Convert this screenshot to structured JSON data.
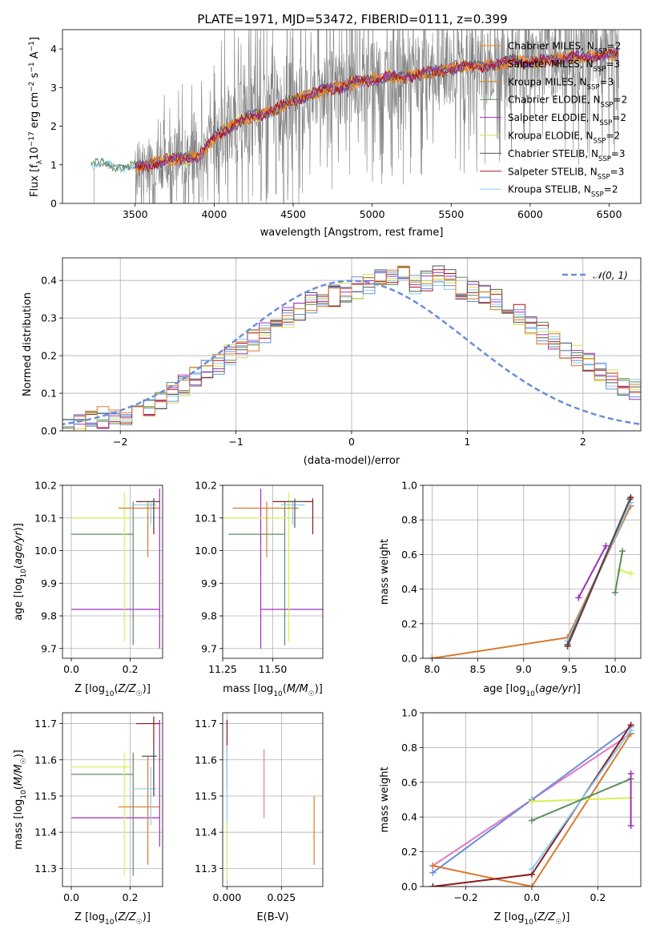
{
  "figure_title": "PLATE=1971, MJD=53472, FIBERID=0111, z=0.399",
  "colors": {
    "chabrier_miles": "#ff7f0e",
    "salpeter_miles": "#9467bd",
    "kroupa_miles": "#e08010",
    "chabrier_elodie": "#5e8c5e",
    "salpeter_elodie": "#a030c0",
    "kroupa_elodie": "#d8e050",
    "chabrier_stelib": "#555555",
    "salpeter_stelib": "#b01010",
    "kroupa_stelib": "#88ccee",
    "data": "#808080",
    "gauss": "#6a8fd8",
    "pink": "#e377c2",
    "blue": "#6a8fd8",
    "orange": "#d87a30",
    "darkred": "#8b1a1a",
    "green": "#5e8c5e",
    "yellow": "#d8f050",
    "cyan": "#88ccee",
    "purple": "#a030c0"
  },
  "chart_data": [
    {
      "type": "line",
      "title": "PLATE=1971, MJD=53472, FIBERID=0111, z=0.399",
      "xlabel": "wavelength [Angstrom, rest frame]",
      "ylabel": "Flux [f_λ 10^-17 erg cm^-2 s^-1 A^-1]",
      "xlim": [
        3040,
        6700
      ],
      "ylim": [
        0,
        4.5
      ],
      "xticks": [
        3500,
        4000,
        4500,
        5000,
        5500,
        6000,
        6500
      ],
      "yticks": [
        0,
        1,
        2,
        3,
        4
      ],
      "legend": [
        {
          "label": "Chabrier MILES, N",
          "sub": "SSP",
          "suffix": "=2",
          "color_key": "chabrier_miles"
        },
        {
          "label": "Salpeter MILES, N",
          "sub": "SSP",
          "suffix": "=3",
          "color_key": "salpeter_miles"
        },
        {
          "label": "Kroupa MILES, N",
          "sub": "SSP",
          "suffix": "=3",
          "color_key": "kroupa_miles"
        },
        {
          "label": "Chabrier ELODIE, N",
          "sub": "SSP",
          "suffix": "=2",
          "color_key": "chabrier_elodie"
        },
        {
          "label": "Salpeter ELODIE, N",
          "sub": "SSP",
          "suffix": "=2",
          "color_key": "salpeter_elodie"
        },
        {
          "label": "Kroupa ELODIE, N",
          "sub": "SSP",
          "suffix": "=2",
          "color_key": "kroupa_elodie"
        },
        {
          "label": "Chabrier STELIB, N",
          "sub": "SSP",
          "suffix": "=3",
          "color_key": "chabrier_stelib"
        },
        {
          "label": "Salpeter STELIB, N",
          "sub": "SSP",
          "suffix": "=3",
          "color_key": "salpeter_stelib"
        },
        {
          "label": "Kroupa STELIB, N",
          "sub": "SSP",
          "suffix": "=2",
          "color_key": "kroupa_stelib"
        }
      ],
      "model_curve": {
        "x": [
          3220,
          3300,
          3400,
          3500,
          3600,
          3700,
          3800,
          3900,
          4000,
          4100,
          4200,
          4300,
          4400,
          4500,
          4600,
          4700,
          4800,
          4900,
          5000,
          5100,
          5200,
          5300,
          5400,
          5500,
          5600,
          5700,
          5800,
          5900,
          6000,
          6100,
          6200,
          6300,
          6400,
          6500
        ],
        "y": [
          1.0,
          1.0,
          0.98,
          0.92,
          1.02,
          1.12,
          1.15,
          1.2,
          1.7,
          2.0,
          2.2,
          2.3,
          2.45,
          2.7,
          2.8,
          2.95,
          3.0,
          3.15,
          3.2,
          3.3,
          3.25,
          3.35,
          3.4,
          3.5,
          3.55,
          3.55,
          3.6,
          3.7,
          3.65,
          3.7,
          3.75,
          3.8,
          3.8,
          3.85
        ]
      },
      "data_range": {
        "x": [
          3220,
          6560
        ]
      }
    },
    {
      "type": "histogram",
      "xlabel": "(data-model)/error",
      "ylabel": "Normed distribution",
      "xlim": [
        -2.5,
        2.5
      ],
      "ylim": [
        0,
        0.46
      ],
      "xticks": [
        -2,
        -1,
        0,
        1,
        2
      ],
      "yticks": [
        0.0,
        0.1,
        0.2,
        0.3,
        0.4
      ],
      "legend": "𝒩(0, 1)",
      "bin_width": 0.1,
      "bin_start": -2.5,
      "envelope": [
        0.01,
        0.02,
        0.03,
        0.035,
        0.04,
        0.045,
        0.05,
        0.06,
        0.08,
        0.1,
        0.12,
        0.14,
        0.16,
        0.18,
        0.2,
        0.22,
        0.24,
        0.26,
        0.28,
        0.3,
        0.32,
        0.34,
        0.36,
        0.36,
        0.37,
        0.38,
        0.39,
        0.4,
        0.4,
        0.41,
        0.39,
        0.4,
        0.41,
        0.4,
        0.38,
        0.37,
        0.36,
        0.35,
        0.33,
        0.31,
        0.28,
        0.26,
        0.24,
        0.22,
        0.2,
        0.18,
        0.16,
        0.14,
        0.12,
        0.11
      ]
    },
    {
      "type": "scatter",
      "xlabel": "Z [log10(Z/Z☉)]",
      "ylabel": "age [log10(age/yr)]",
      "xlim": [
        -0.03,
        0.31
      ],
      "ylim": [
        9.67,
        10.2
      ],
      "xticks": [
        0.0,
        0.2
      ],
      "yticks": [
        9.7,
        9.8,
        9.9,
        10.0,
        10.1,
        10.2
      ],
      "points": [
        {
          "x": 0.3,
          "y": 9.82,
          "xerr": [
            0.3,
            0.0
          ],
          "yerr": [
            0.12,
            0.37
          ],
          "color_key": "purple"
        },
        {
          "x": 0.21,
          "y": 10.05,
          "xerr": [
            0.21,
            0.0
          ],
          "yerr": [
            0.34,
            0.1
          ],
          "color_key": "green"
        },
        {
          "x": 0.18,
          "y": 10.1,
          "xerr": [
            0.18,
            0.02
          ],
          "yerr": [
            0.38,
            0.08
          ],
          "color_key": "yellow"
        },
        {
          "x": 0.26,
          "y": 10.13,
          "xerr": [
            0.1,
            0.04
          ],
          "yerr": [
            0.15,
            0.02
          ],
          "color_key": "orange"
        },
        {
          "x": 0.28,
          "y": 10.15,
          "xerr": [
            0.06,
            0.02
          ],
          "yerr": [
            0.1,
            0.01
          ],
          "color_key": "darkred"
        },
        {
          "x": 0.27,
          "y": 10.14,
          "xerr": [
            0.06,
            0.02
          ],
          "yerr": [
            0.06,
            0.01
          ],
          "color_key": "cyan"
        },
        {
          "x": 0.28,
          "y": 10.15,
          "xerr": [
            0.04,
            0.01
          ],
          "yerr": [
            0.08,
            0.01
          ],
          "color_key": "chabrier_stelib"
        }
      ]
    },
    {
      "type": "scatter",
      "xlabel": "mass [log10(M/M☉)]",
      "ylabel": "",
      "xlim": [
        11.25,
        11.75
      ],
      "ylim": [
        9.67,
        10.2
      ],
      "xticks": [
        11.25,
        11.5
      ],
      "yticks": [
        9.7,
        9.8,
        9.9,
        10.0,
        10.1,
        10.2
      ],
      "points": [
        {
          "x": 11.44,
          "y": 9.82,
          "xerr": [
            0.0,
            0.36
          ],
          "yerr": [
            0.12,
            0.37
          ],
          "color_key": "purple"
        },
        {
          "x": 11.56,
          "y": 10.05,
          "xerr": [
            0.28,
            0.0
          ],
          "yerr": [
            0.34,
            0.1
          ],
          "color_key": "green"
        },
        {
          "x": 11.58,
          "y": 10.1,
          "xerr": [
            0.34,
            0.0
          ],
          "yerr": [
            0.38,
            0.08
          ],
          "color_key": "yellow"
        },
        {
          "x": 11.47,
          "y": 10.13,
          "xerr": [
            0.17,
            0.16
          ],
          "yerr": [
            0.15,
            0.02
          ],
          "color_key": "orange"
        },
        {
          "x": 11.7,
          "y": 10.15,
          "xerr": [
            0.2,
            0.0
          ],
          "yerr": [
            0.1,
            0.01
          ],
          "color_key": "darkred"
        },
        {
          "x": 11.6,
          "y": 10.14,
          "xerr": [
            0.06,
            0.06
          ],
          "yerr": [
            0.06,
            0.01
          ],
          "color_key": "cyan"
        },
        {
          "x": 11.61,
          "y": 10.15,
          "xerr": [
            0.04,
            0.04
          ],
          "yerr": [
            0.08,
            0.01
          ],
          "color_key": "chabrier_stelib"
        }
      ]
    },
    {
      "type": "line",
      "xlabel": "age [log10(age/yr)]",
      "ylabel": "mass weight",
      "xlim": [
        7.9,
        10.28
      ],
      "ylim": [
        0,
        1.0
      ],
      "xticks": [
        8.0,
        8.5,
        9.0,
        9.5,
        10.0
      ],
      "yticks": [
        0.0,
        0.2,
        0.4,
        0.6,
        0.8,
        1.0
      ],
      "series": [
        {
          "color_key": "orange",
          "x": [
            8.0,
            9.48,
            10.17
          ],
          "y": [
            0.0,
            0.12,
            0.88
          ]
        },
        {
          "color_key": "cyan",
          "x": [
            9.48,
            10.17
          ],
          "y": [
            0.1,
            0.9
          ]
        },
        {
          "color_key": "darkred",
          "x": [
            9.48,
            10.17
          ],
          "y": [
            0.07,
            0.93
          ]
        },
        {
          "color_key": "chabrier_stelib",
          "x": [
            9.48,
            10.16
          ],
          "y": [
            0.08,
            0.92
          ]
        },
        {
          "color_key": "purple",
          "x": [
            9.6,
            9.9
          ],
          "y": [
            0.35,
            0.65
          ]
        },
        {
          "color_key": "yellow",
          "x": [
            10.05,
            10.17
          ],
          "y": [
            0.51,
            0.49
          ]
        },
        {
          "color_key": "green",
          "x": [
            10.0,
            10.08
          ],
          "y": [
            0.38,
            0.62
          ]
        }
      ]
    },
    {
      "type": "scatter",
      "xlabel": "Z [log10(Z/Z☉)]",
      "ylabel": "mass [log10(M/M☉)]",
      "xlim": [
        -0.03,
        0.31
      ],
      "ylim": [
        11.25,
        11.73
      ],
      "xticks": [
        0.0,
        0.2
      ],
      "yticks": [
        11.3,
        11.4,
        11.5,
        11.6,
        11.7
      ],
      "points": [
        {
          "x": 0.3,
          "y": 11.44,
          "xerr": [
            0.3,
            0.0
          ],
          "yerr": [
            0.08,
            0.27
          ],
          "color_key": "purple"
        },
        {
          "x": 0.21,
          "y": 11.56,
          "xerr": [
            0.21,
            0.0
          ],
          "yerr": [
            0.28,
            0.06
          ],
          "color_key": "green"
        },
        {
          "x": 0.18,
          "y": 11.58,
          "xerr": [
            0.18,
            0.02
          ],
          "yerr": [
            0.3,
            0.04
          ],
          "color_key": "yellow"
        },
        {
          "x": 0.26,
          "y": 11.47,
          "xerr": [
            0.1,
            0.04
          ],
          "yerr": [
            0.16,
            0.14
          ],
          "color_key": "orange"
        },
        {
          "x": 0.28,
          "y": 11.7,
          "xerr": [
            0.06,
            0.02
          ],
          "yerr": [
            0.2,
            0.02
          ],
          "color_key": "darkred"
        },
        {
          "x": 0.27,
          "y": 11.52,
          "xerr": [
            0.06,
            0.02
          ],
          "yerr": [
            0.1,
            0.06
          ],
          "color_key": "cyan"
        },
        {
          "x": 0.28,
          "y": 11.61,
          "xerr": [
            0.04,
            0.01
          ],
          "yerr": [
            0.1,
            0.04
          ],
          "color_key": "chabrier_stelib"
        }
      ]
    },
    {
      "type": "scatter",
      "xlabel": "E(B-V)",
      "ylabel": "",
      "xlim": [
        -0.002,
        0.044
      ],
      "ylim": [
        11.25,
        11.73
      ],
      "xticks": [
        0.0,
        0.025
      ],
      "yticks": [
        11.3,
        11.4,
        11.5,
        11.6,
        11.7
      ],
      "segments": [
        {
          "x": 0.0,
          "y0": 11.52,
          "y1": 11.71,
          "color_key": "darkred"
        },
        {
          "x": 0.0,
          "y0": 11.32,
          "y1": 11.64,
          "color_key": "cyan"
        },
        {
          "x": 0.0,
          "y0": 11.27,
          "y1": 11.43,
          "color_key": "yellow"
        },
        {
          "x": 0.017,
          "y0": 11.44,
          "y1": 11.63,
          "color_key": "pink"
        },
        {
          "x": 0.04,
          "y0": 11.31,
          "y1": 11.5,
          "color_key": "orange"
        }
      ]
    },
    {
      "type": "line",
      "xlabel": "Z [log10(Z/Z☉)]",
      "ylabel": "mass weight",
      "xlim": [
        -0.33,
        0.33
      ],
      "ylim": [
        0,
        1.0
      ],
      "xticks": [
        -0.2,
        0.0,
        0.2
      ],
      "yticks": [
        0.0,
        0.2,
        0.4,
        0.6,
        0.8,
        1.0
      ],
      "series": [
        {
          "color_key": "pink",
          "x": [
            -0.3,
            0.0,
            0.3
          ],
          "y": [
            0.12,
            0.5,
            0.88
          ]
        },
        {
          "color_key": "blue",
          "x": [
            -0.3,
            0.0,
            0.3
          ],
          "y": [
            0.08,
            0.5,
            0.92
          ]
        },
        {
          "color_key": "orange",
          "x": [
            -0.3,
            0.0,
            0.3
          ],
          "y": [
            0.12,
            0.0,
            0.88
          ]
        },
        {
          "color_key": "darkred",
          "x": [
            -0.3,
            0.0,
            0.3
          ],
          "y": [
            0.0,
            0.07,
            0.93
          ]
        },
        {
          "color_key": "cyan",
          "x": [
            0.0,
            0.3
          ],
          "y": [
            0.1,
            0.9
          ]
        },
        {
          "color_key": "yellow",
          "x": [
            0.0,
            0.3
          ],
          "y": [
            0.49,
            0.51
          ]
        },
        {
          "color_key": "green",
          "x": [
            0.0,
            0.3
          ],
          "y": [
            0.38,
            0.62
          ]
        },
        {
          "color_key": "purple",
          "x": [
            0.3,
            0.3
          ],
          "y": [
            0.35,
            0.65
          ]
        }
      ]
    }
  ]
}
